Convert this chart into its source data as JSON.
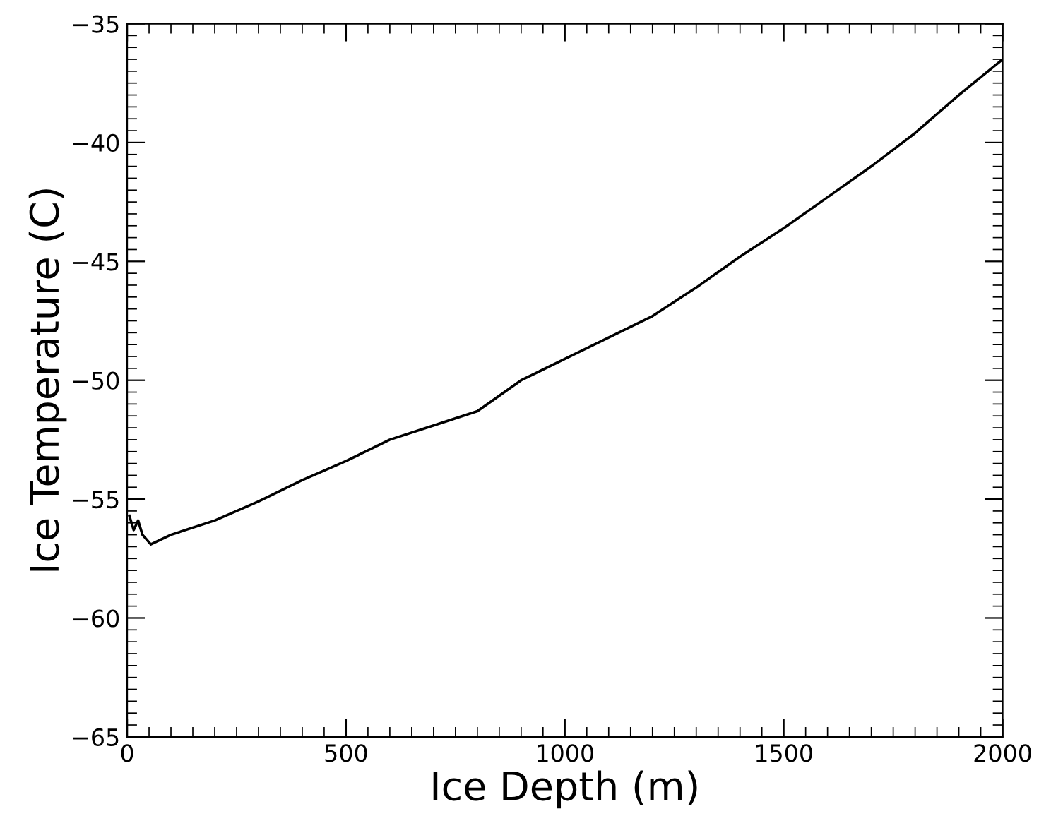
{
  "chart_data": {
    "type": "line",
    "xlabel": "Ice Depth (m)",
    "ylabel": "Ice Temperature (C)",
    "series": [
      {
        "color": "#000000",
        "x": [
          5,
          15,
          25,
          35,
          54,
          100,
          200,
          300,
          400,
          500,
          600,
          700,
          800,
          900,
          1000,
          1100,
          1200,
          1300,
          1400,
          1500,
          1600,
          1700,
          1800,
          1900,
          2000
        ],
        "values": [
          -55.7,
          -56.3,
          -55.9,
          -56.5,
          -56.9,
          -56.5,
          -55.9,
          -55.1,
          -54.2,
          -53.4,
          -52.5,
          -51.9,
          -51.3,
          -50.0,
          -49.1,
          -48.2,
          -47.3,
          -46.1,
          -44.8,
          -43.6,
          -42.3,
          -41.0,
          -39.6,
          -38.0,
          -36.5
        ]
      }
    ],
    "xlim": [
      0,
      2000
    ],
    "ylim": [
      -65,
      -35
    ],
    "xticks": [
      0,
      500,
      1000,
      1500,
      2000
    ],
    "yticks": [
      -65,
      -60,
      -55,
      -50,
      -45,
      -40,
      -35
    ],
    "grid": false,
    "legend": false,
    "marker": "none",
    "line_style": "solid"
  }
}
